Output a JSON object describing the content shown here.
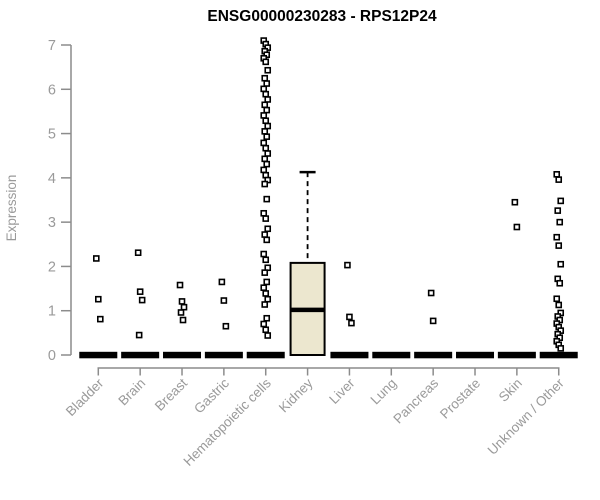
{
  "chart_data": {
    "type": "boxplot",
    "title": "ENSG00000230283 - RPS12P24",
    "ylabel": "Expression",
    "xlabel": "",
    "ylim": [
      0,
      7
    ],
    "yticks": [
      0,
      1,
      2,
      3,
      4,
      5,
      6,
      7
    ],
    "grid": false,
    "legend": "none",
    "colors": {
      "box_fill": "#ece7cf",
      "stroke": "#000000",
      "axis_line": "#8c8c8c",
      "tick_label": "#9a9a9a",
      "title": "#000000"
    },
    "categories": [
      "Bladder",
      "Brain",
      "Breast",
      "Gastric",
      "Hematopoietic cells",
      "Kidney",
      "Liver",
      "Lung",
      "Pancreas",
      "Prostate",
      "Skin",
      "Unknown / Other"
    ],
    "groups": [
      {
        "category": "Bladder",
        "zero_cluster": true,
        "outliers": [
          2.18,
          1.26,
          0.81
        ]
      },
      {
        "category": "Brain",
        "zero_cluster": true,
        "outliers": [
          2.31,
          1.43,
          1.24,
          0.45
        ]
      },
      {
        "category": "Breast",
        "zero_cluster": true,
        "outliers": [
          1.58,
          1.21,
          1.08,
          0.96,
          0.79
        ]
      },
      {
        "category": "Gastric",
        "zero_cluster": true,
        "outliers": [
          1.65,
          1.23,
          0.65
        ]
      },
      {
        "category": "Hematopoietic cells",
        "zero_cluster": true,
        "outliers": [
          7.1,
          7.02,
          6.94,
          6.86,
          6.78,
          6.7,
          6.62,
          6.43,
          6.25,
          6.13,
          6.01,
          5.89,
          5.77,
          5.65,
          5.53,
          5.41,
          5.29,
          5.17,
          5.05,
          4.93,
          4.79,
          4.67,
          4.55,
          4.43,
          4.31,
          4.18,
          4.06,
          3.95,
          3.86,
          3.52,
          3.2,
          3.08,
          2.85,
          2.72,
          2.6,
          2.28,
          2.15,
          1.97,
          1.86,
          1.65,
          1.52,
          1.39,
          1.26,
          1.14,
          0.83,
          0.7,
          0.57,
          0.44
        ]
      },
      {
        "category": "Kidney",
        "zero_cluster": false,
        "box": {
          "min": 0,
          "q1": 0,
          "median": 1.02,
          "q3": 2.08,
          "max": 4.13
        },
        "outliers": []
      },
      {
        "category": "Liver",
        "zero_cluster": true,
        "outliers": [
          2.03,
          0.86,
          0.72
        ]
      },
      {
        "category": "Lung",
        "zero_cluster": true,
        "outliers": []
      },
      {
        "category": "Pancreas",
        "zero_cluster": true,
        "outliers": [
          1.4,
          0.77
        ]
      },
      {
        "category": "Prostate",
        "zero_cluster": true,
        "outliers": []
      },
      {
        "category": "Skin",
        "zero_cluster": true,
        "outliers": [
          3.45,
          2.89
        ]
      },
      {
        "category": "Unknown / Other",
        "zero_cluster": true,
        "outliers": [
          4.08,
          3.96,
          3.48,
          3.26,
          3.0,
          2.66,
          2.47,
          2.05,
          1.72,
          1.62,
          1.27,
          1.13,
          0.95,
          0.87,
          0.79,
          0.71,
          0.63,
          0.55,
          0.47,
          0.39,
          0.31,
          0.23,
          0.15
        ]
      }
    ]
  }
}
